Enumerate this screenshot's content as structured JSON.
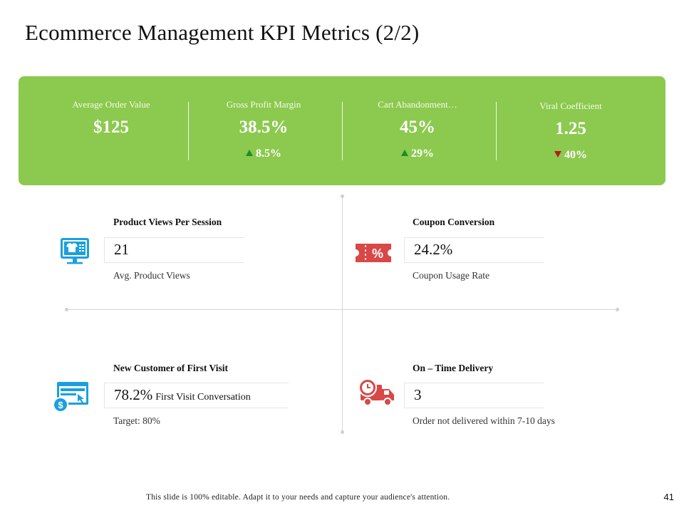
{
  "title": "Ecommerce Management KPI Metrics (2/2)",
  "banner": {
    "bg_color": "#8cc94f",
    "metrics": [
      {
        "label": "Average Order Value",
        "value": "$125",
        "change": ""
      },
      {
        "label": "Gross Profit Margin",
        "value": "38.5%",
        "change": "8.5%",
        "direction": "up"
      },
      {
        "label": "Cart Abandonment…",
        "value": "45%",
        "change": "29%",
        "direction": "up"
      },
      {
        "label": "Viral Coefficient",
        "value": "1.25",
        "change": "40%",
        "direction": "down"
      }
    ]
  },
  "kpis": {
    "product_views": {
      "title": "Product Views Per Session",
      "value": "21",
      "subtitle": "Avg. Product Views",
      "icon": "monitor-shirt-icon",
      "icon_color": "#1aa0e0"
    },
    "coupon": {
      "title": "Coupon Conversion",
      "value": "24.2%",
      "subtitle": "Coupon Usage Rate",
      "icon": "coupon-percent-icon",
      "icon_color": "#d94747"
    },
    "new_customer": {
      "title": "New Customer of First Visit",
      "value": "78.2%",
      "value_extra": "First Visit Conversation",
      "subtitle": "Target: 80%",
      "icon": "browser-dollar-icon",
      "icon_color": "#1aa0e0"
    },
    "delivery": {
      "title": "On – Time Delivery",
      "value": "3",
      "subtitle": "Order not delivered within 7-10 days",
      "icon": "delivery-truck-clock-icon",
      "icon_color": "#d94747"
    }
  },
  "footer": {
    "note": "This slide is 100% editable.  Adapt  it to your needs  and  capture  your audience's  attention.",
    "page_number": "41"
  }
}
